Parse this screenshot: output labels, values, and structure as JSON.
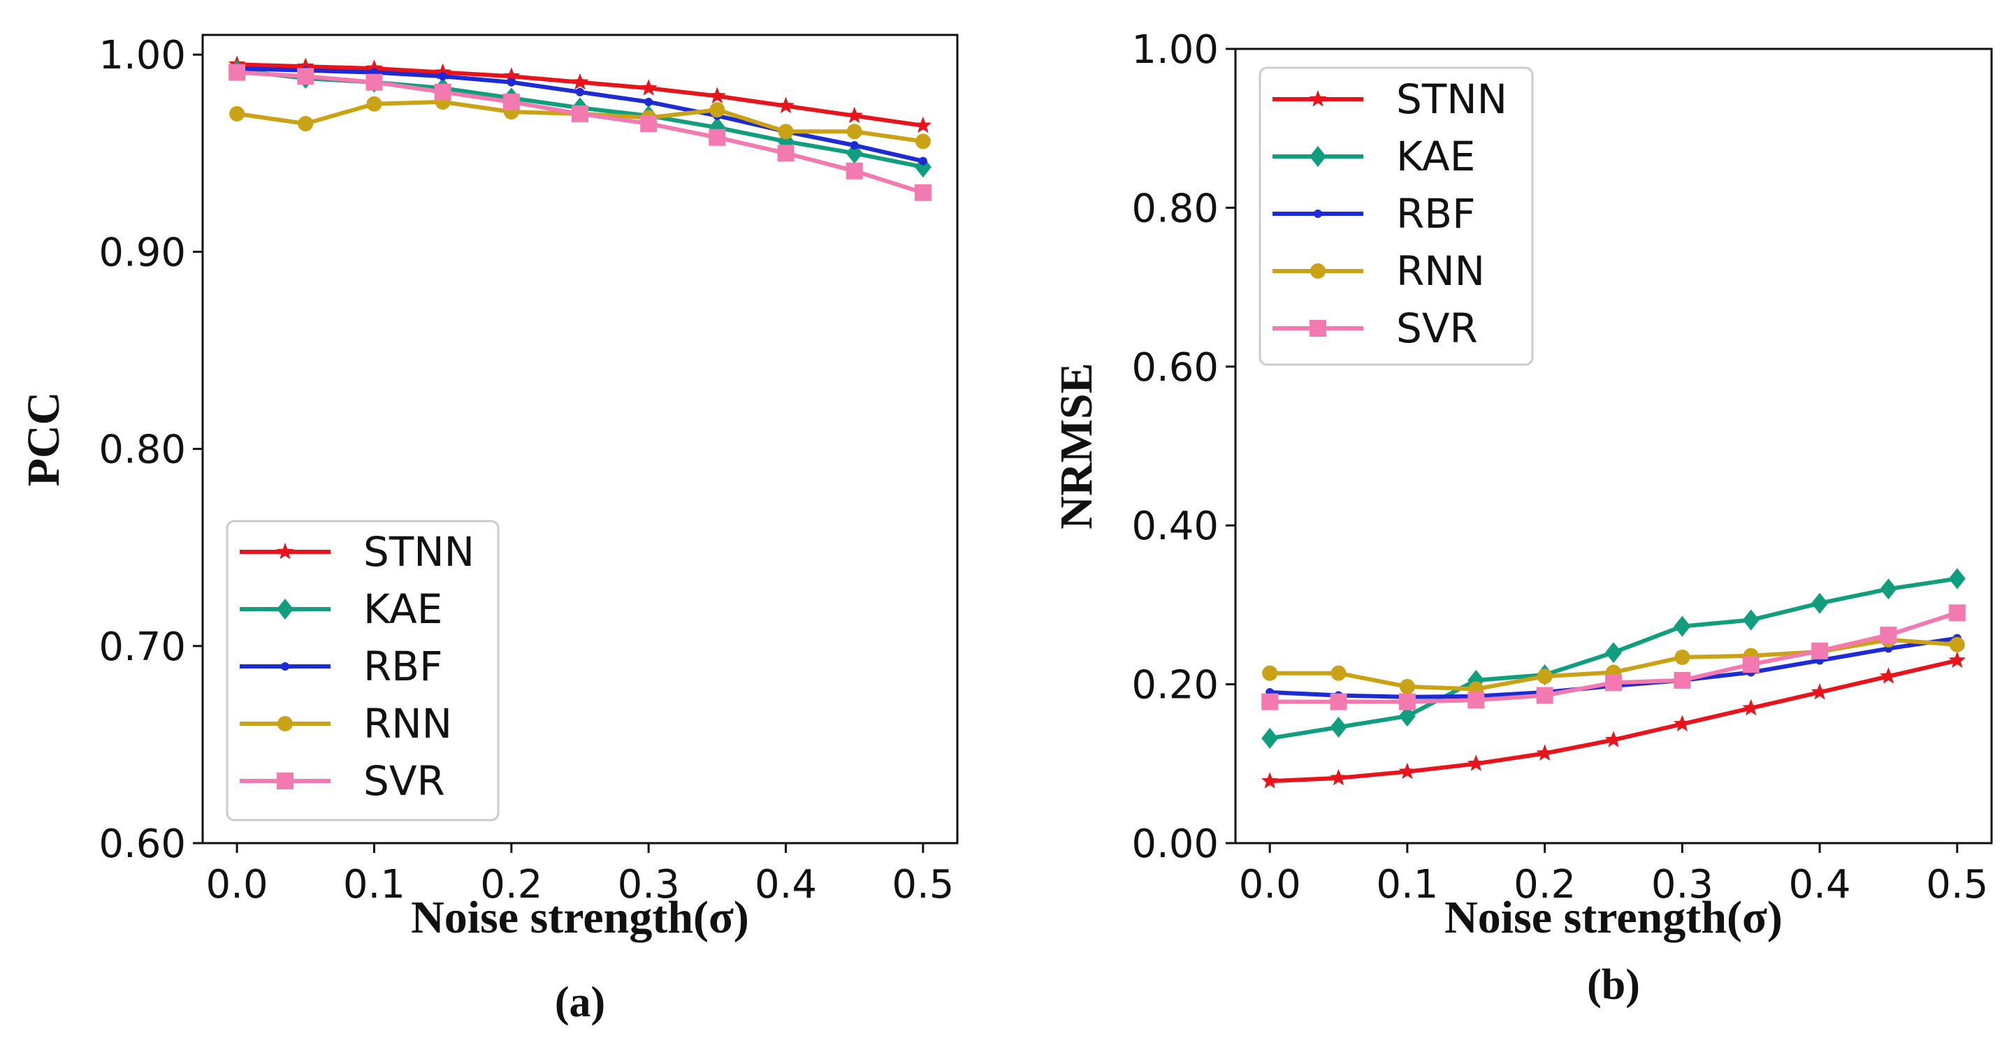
{
  "chart_data": [
    {
      "type": "line",
      "panel_label": "(a)",
      "xlabel": "Noise strength(σ)",
      "ylabel": "PCC",
      "xlim": [
        -0.025,
        0.525
      ],
      "ylim": [
        0.6,
        1.01
      ],
      "x": [
        0.0,
        0.05,
        0.1,
        0.15,
        0.2,
        0.25,
        0.3,
        0.35,
        0.4,
        0.45,
        0.5
      ],
      "x_ticks": [
        0.0,
        0.1,
        0.2,
        0.3,
        0.4,
        0.5
      ],
      "x_tick_labels": [
        "0.0",
        "0.1",
        "0.2",
        "0.3",
        "0.4",
        "0.5"
      ],
      "y_ticks": [
        0.6,
        0.7,
        0.8,
        0.9,
        1.0
      ],
      "y_tick_labels": [
        "0.60",
        "0.70",
        "0.80",
        "0.90",
        "1.00"
      ],
      "legend_position": "lower-left",
      "series": [
        {
          "name": "STNN",
          "color": "#e8141c",
          "marker": "star",
          "values": [
            0.995,
            0.994,
            0.993,
            0.991,
            0.989,
            0.986,
            0.983,
            0.979,
            0.974,
            0.969,
            0.964
          ]
        },
        {
          "name": "KAE",
          "color": "#109e7e",
          "marker": "diamond",
          "values": [
            0.992,
            0.988,
            0.986,
            0.983,
            0.978,
            0.973,
            0.969,
            0.963,
            0.956,
            0.95,
            0.943
          ]
        },
        {
          "name": "RBF",
          "color": "#1d2bd4",
          "marker": "dot",
          "values": [
            0.993,
            0.992,
            0.991,
            0.989,
            0.986,
            0.981,
            0.976,
            0.969,
            0.961,
            0.954,
            0.946
          ]
        },
        {
          "name": "RNN",
          "color": "#c9a315",
          "marker": "circle",
          "values": [
            0.97,
            0.965,
            0.975,
            0.976,
            0.971,
            0.97,
            0.968,
            0.972,
            0.961,
            0.961,
            0.956
          ]
        },
        {
          "name": "SVR",
          "color": "#f37ab0",
          "marker": "square",
          "values": [
            0.991,
            0.989,
            0.986,
            0.981,
            0.976,
            0.97,
            0.965,
            0.958,
            0.95,
            0.941,
            0.93
          ]
        }
      ]
    },
    {
      "type": "line",
      "panel_label": "(b)",
      "xlabel": "Noise strength(σ)",
      "ylabel": "NRMSE",
      "xlim": [
        -0.025,
        0.525
      ],
      "ylim": [
        0.0,
        1.0
      ],
      "x": [
        0.0,
        0.05,
        0.1,
        0.15,
        0.2,
        0.25,
        0.3,
        0.35,
        0.4,
        0.45,
        0.5
      ],
      "x_ticks": [
        0.0,
        0.1,
        0.2,
        0.3,
        0.4,
        0.5
      ],
      "x_tick_labels": [
        "0.0",
        "0.1",
        "0.2",
        "0.3",
        "0.4",
        "0.5"
      ],
      "y_ticks": [
        0.0,
        0.2,
        0.4,
        0.6,
        0.8,
        1.0
      ],
      "y_tick_labels": [
        "0.00",
        "0.20",
        "0.40",
        "0.60",
        "0.80",
        "1.00"
      ],
      "legend_position": "top-left",
      "series": [
        {
          "name": "STNN",
          "color": "#e8141c",
          "marker": "star",
          "values": [
            0.078,
            0.082,
            0.09,
            0.1,
            0.113,
            0.13,
            0.15,
            0.17,
            0.19,
            0.21,
            0.23
          ]
        },
        {
          "name": "KAE",
          "color": "#109e7e",
          "marker": "diamond",
          "values": [
            0.132,
            0.146,
            0.16,
            0.205,
            0.212,
            0.24,
            0.273,
            0.281,
            0.302,
            0.32,
            0.333
          ]
        },
        {
          "name": "RBF",
          "color": "#1d2bd4",
          "marker": "dot",
          "values": [
            0.19,
            0.186,
            0.184,
            0.185,
            0.19,
            0.198,
            0.205,
            0.215,
            0.23,
            0.245,
            0.258
          ]
        },
        {
          "name": "RNN",
          "color": "#c9a315",
          "marker": "circle",
          "values": [
            0.214,
            0.214,
            0.197,
            0.194,
            0.21,
            0.215,
            0.234,
            0.236,
            0.241,
            0.256,
            0.25
          ]
        },
        {
          "name": "SVR",
          "color": "#f37ab0",
          "marker": "square",
          "values": [
            0.178,
            0.178,
            0.178,
            0.18,
            0.186,
            0.202,
            0.205,
            0.225,
            0.242,
            0.262,
            0.29
          ]
        }
      ]
    }
  ]
}
